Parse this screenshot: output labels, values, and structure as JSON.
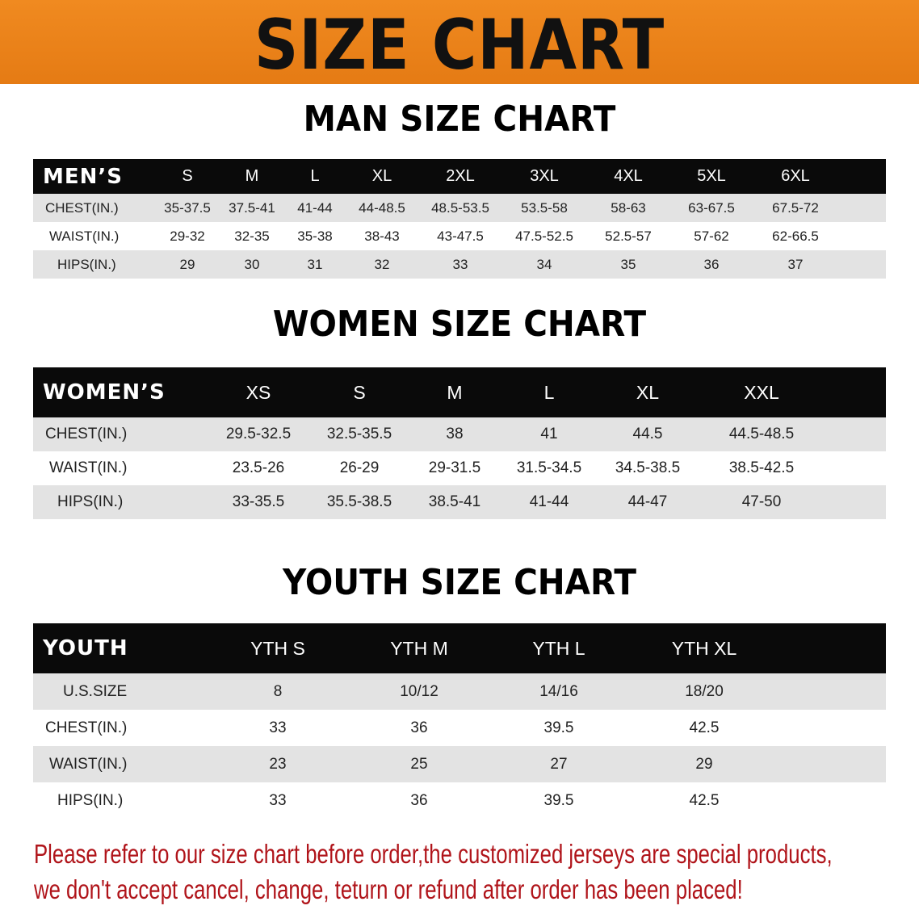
{
  "banner": {
    "title": "SIZE CHART",
    "color": "#e8821a"
  },
  "men": {
    "title": "MAN SIZE CHART",
    "header": "MEN’S",
    "sizes": [
      "S",
      "M",
      "L",
      "XL",
      "2XL",
      "3XL",
      "4XL",
      "5XL",
      "6XL"
    ],
    "rows": [
      {
        "label": "CHEST(IN.)",
        "values": [
          "35-37.5",
          "37.5-41",
          "41-44",
          "44-48.5",
          "48.5-53.5",
          "53.5-58",
          "58-63",
          "63-67.5",
          "67.5-72"
        ]
      },
      {
        "label": "WAIST(IN.)",
        "values": [
          "29-32",
          "32-35",
          "35-38",
          "38-43",
          "43-47.5",
          "47.5-52.5",
          "52.5-57",
          "57-62",
          "62-66.5"
        ]
      },
      {
        "label": "HIPS(IN.)",
        "values": [
          "29",
          "30",
          "31",
          "32",
          "33",
          "34",
          "35",
          "36",
          "37"
        ]
      }
    ]
  },
  "women": {
    "title": "WOMEN SIZE CHART",
    "header": "WOMEN’S",
    "sizes": [
      "XS",
      "S",
      "M",
      "L",
      "XL",
      "XXL"
    ],
    "rows": [
      {
        "label": "CHEST(IN.)",
        "values": [
          "29.5-32.5",
          "32.5-35.5",
          "38",
          "41",
          "44.5",
          "44.5-48.5"
        ]
      },
      {
        "label": "WAIST(IN.)",
        "values": [
          "23.5-26",
          "26-29",
          "29-31.5",
          "31.5-34.5",
          "34.5-38.5",
          "38.5-42.5"
        ]
      },
      {
        "label": "HIPS(IN.)",
        "values": [
          "33-35.5",
          "35.5-38.5",
          "38.5-41",
          "41-44",
          "44-47",
          "47-50"
        ]
      }
    ]
  },
  "youth": {
    "title": "YOUTH SIZE CHART",
    "header": "YOUTH",
    "sizes": [
      "YTH S",
      "YTH M",
      "YTH L",
      "YTH XL"
    ],
    "rows": [
      {
        "label": "U.S.SIZE",
        "values": [
          "8",
          "10/12",
          "14/16",
          "18/20"
        ]
      },
      {
        "label": "CHEST(IN.)",
        "values": [
          "33",
          "36",
          "39.5",
          "42.5"
        ]
      },
      {
        "label": "WAIST(IN.)",
        "values": [
          "23",
          "25",
          "27",
          "29"
        ]
      },
      {
        "label": "HIPS(IN.)",
        "values": [
          "33",
          "36",
          "39.5",
          "42.5"
        ]
      }
    ]
  },
  "note": {
    "line1": "Please refer to our size chart before order,the customized jerseys are special products,",
    "line2": "we don't accept cancel, change, teturn or refund after order has been placed!",
    "color": "#b0141a"
  }
}
